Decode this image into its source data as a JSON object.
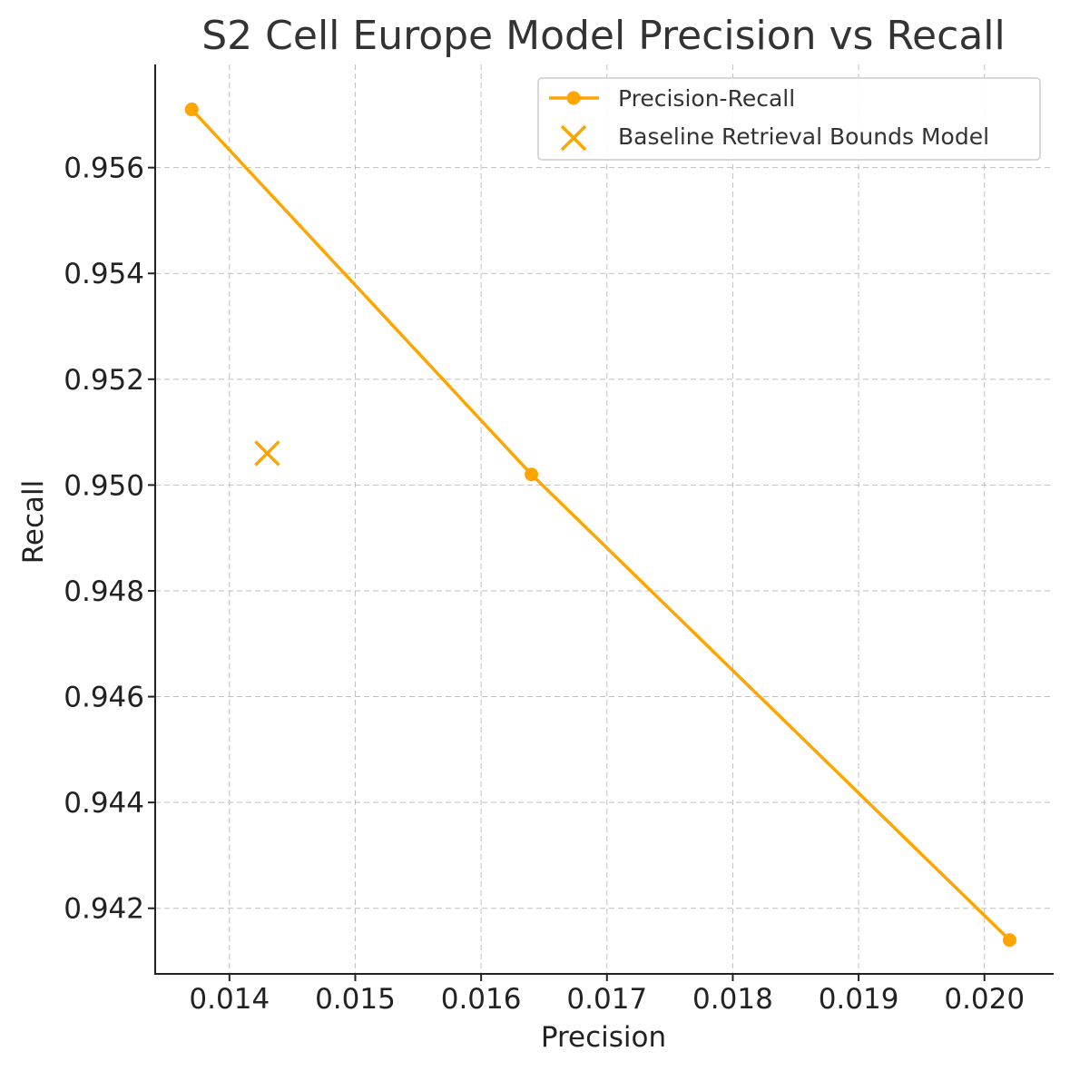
{
  "chart_data": {
    "type": "line",
    "title": "S2 Cell Europe Model Precision vs Recall",
    "xlabel": "Precision",
    "ylabel": "Recall",
    "xlim": [
      0.01341,
      0.02055
    ],
    "ylim": [
      0.94076,
      0.95795
    ],
    "xticks": [
      0.014,
      0.015,
      0.016,
      0.017,
      0.018,
      0.019,
      0.02
    ],
    "xtick_labels": [
      "0.014",
      "0.015",
      "0.016",
      "0.017",
      "0.018",
      "0.019",
      "0.020"
    ],
    "yticks": [
      0.942,
      0.944,
      0.946,
      0.948,
      0.95,
      0.952,
      0.954,
      0.956
    ],
    "ytick_labels": [
      "0.942",
      "0.944",
      "0.946",
      "0.948",
      "0.950",
      "0.952",
      "0.954",
      "0.956"
    ],
    "grid": true,
    "legend_position": "top-right",
    "series": [
      {
        "name": "Precision-Recall",
        "kind": "line-marker",
        "color": "#FFA500",
        "x": [
          0.0137,
          0.0164,
          0.0202
        ],
        "y": [
          0.9571,
          0.9502,
          0.9414
        ]
      },
      {
        "name": "Baseline Retrieval Bounds Model",
        "kind": "x-marker",
        "color": "#FFA500",
        "x": [
          0.0143
        ],
        "y": [
          0.9506
        ]
      }
    ]
  }
}
